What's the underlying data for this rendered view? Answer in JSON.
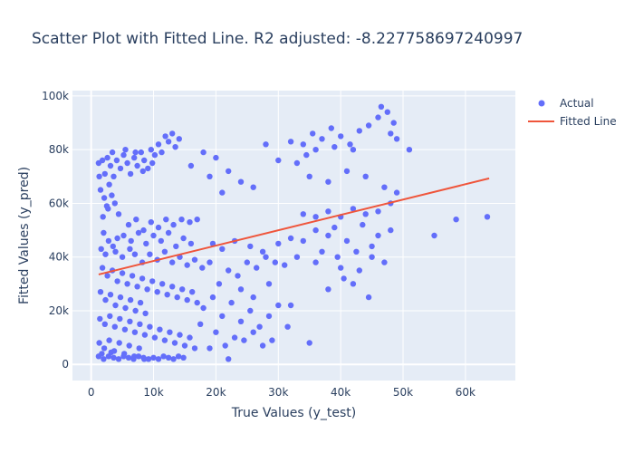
{
  "chart_data": {
    "type": "scatter",
    "title": "Scatter Plot with Fitted Line. R2 adjusted: -8.227758697240997",
    "xlabel": "True Values (y_test)",
    "ylabel": "Fitted Values (y_pred)",
    "xlim": [
      -3000,
      68000
    ],
    "ylim": [
      -6000,
      102000
    ],
    "x_ticks": [
      0,
      10000,
      20000,
      30000,
      40000,
      50000,
      60000
    ],
    "x_tick_labels": [
      "0",
      "10k",
      "20k",
      "30k",
      "40k",
      "50k",
      "60k"
    ],
    "y_ticks": [
      0,
      20000,
      40000,
      60000,
      80000,
      100000
    ],
    "y_tick_labels": [
      "0",
      "20k",
      "40k",
      "60k",
      "80k",
      "100k"
    ],
    "grid": true,
    "legend_position": "top-right",
    "series": [
      {
        "name": "Actual",
        "color": "#636efa",
        "mode": "markers",
        "points": [
          [
            1200,
            75000
          ],
          [
            1800,
            76000
          ],
          [
            2200,
            71000
          ],
          [
            2600,
            77000
          ],
          [
            3100,
            74000
          ],
          [
            3600,
            70000
          ],
          [
            4100,
            76000
          ],
          [
            4700,
            73000
          ],
          [
            5200,
            78000
          ],
          [
            5800,
            75000
          ],
          [
            6300,
            71000
          ],
          [
            6900,
            77000
          ],
          [
            7400,
            74000
          ],
          [
            8000,
            79000
          ],
          [
            8500,
            76000
          ],
          [
            9100,
            73000
          ],
          [
            9600,
            80000
          ],
          [
            10200,
            78000
          ],
          [
            10800,
            82000
          ],
          [
            11300,
            79000
          ],
          [
            11900,
            85000
          ],
          [
            12400,
            83000
          ],
          [
            13000,
            86000
          ],
          [
            13500,
            81000
          ],
          [
            14100,
            84000
          ],
          [
            9800,
            75000
          ],
          [
            8300,
            72000
          ],
          [
            7100,
            79000
          ],
          [
            5500,
            80000
          ],
          [
            3400,
            79000
          ],
          [
            1500,
            65000
          ],
          [
            2100,
            62000
          ],
          [
            2700,
            58000
          ],
          [
            3300,
            63000
          ],
          [
            1900,
            55000
          ],
          [
            2500,
            59000
          ],
          [
            3800,
            60000
          ],
          [
            4400,
            56000
          ],
          [
            1300,
            70000
          ],
          [
            2900,
            67000
          ],
          [
            6000,
            52000
          ],
          [
            7200,
            54000
          ],
          [
            8400,
            50000
          ],
          [
            9600,
            53000
          ],
          [
            10800,
            51000
          ],
          [
            12000,
            54000
          ],
          [
            13200,
            52000
          ],
          [
            14500,
            54000
          ],
          [
            15800,
            53000
          ],
          [
            17000,
            54000
          ],
          [
            5200,
            48000
          ],
          [
            6400,
            46000
          ],
          [
            7600,
            49000
          ],
          [
            8800,
            45000
          ],
          [
            10000,
            48000
          ],
          [
            11200,
            46000
          ],
          [
            12400,
            49000
          ],
          [
            13600,
            44000
          ],
          [
            14800,
            47000
          ],
          [
            16000,
            45000
          ],
          [
            2000,
            49000
          ],
          [
            2800,
            46000
          ],
          [
            3500,
            44000
          ],
          [
            4200,
            47000
          ],
          [
            1600,
            43000
          ],
          [
            2300,
            41000
          ],
          [
            3900,
            42000
          ],
          [
            5000,
            40000
          ],
          [
            6200,
            43000
          ],
          [
            7000,
            41000
          ],
          [
            8200,
            38000
          ],
          [
            9400,
            41000
          ],
          [
            10600,
            39000
          ],
          [
            11800,
            42000
          ],
          [
            13000,
            38000
          ],
          [
            14200,
            40000
          ],
          [
            15400,
            37000
          ],
          [
            16600,
            39000
          ],
          [
            17800,
            36000
          ],
          [
            19000,
            38000
          ],
          [
            1800,
            36000
          ],
          [
            2600,
            33000
          ],
          [
            3400,
            35000
          ],
          [
            4200,
            31000
          ],
          [
            5000,
            34000
          ],
          [
            5800,
            30000
          ],
          [
            6600,
            33000
          ],
          [
            7400,
            29000
          ],
          [
            8200,
            32000
          ],
          [
            9000,
            28000
          ],
          [
            9800,
            31000
          ],
          [
            10600,
            27000
          ],
          [
            11400,
            30000
          ],
          [
            12200,
            26000
          ],
          [
            13000,
            29000
          ],
          [
            13800,
            25000
          ],
          [
            14600,
            28000
          ],
          [
            15400,
            24000
          ],
          [
            16200,
            27000
          ],
          [
            17000,
            23000
          ],
          [
            1500,
            27000
          ],
          [
            2300,
            24000
          ],
          [
            3100,
            26000
          ],
          [
            3900,
            22000
          ],
          [
            4700,
            25000
          ],
          [
            5500,
            21000
          ],
          [
            6300,
            24000
          ],
          [
            7100,
            20000
          ],
          [
            7900,
            23000
          ],
          [
            8700,
            19000
          ],
          [
            1400,
            17000
          ],
          [
            2200,
            15000
          ],
          [
            3000,
            18000
          ],
          [
            3800,
            14000
          ],
          [
            4600,
            17000
          ],
          [
            5400,
            13000
          ],
          [
            6200,
            16000
          ],
          [
            7000,
            12000
          ],
          [
            7800,
            15000
          ],
          [
            8600,
            11000
          ],
          [
            9400,
            14000
          ],
          [
            10200,
            10000
          ],
          [
            11000,
            13000
          ],
          [
            11800,
            9000
          ],
          [
            12600,
            12000
          ],
          [
            13400,
            8000
          ],
          [
            14200,
            11000
          ],
          [
            15000,
            7000
          ],
          [
            15800,
            10000
          ],
          [
            16600,
            6000
          ],
          [
            1300,
            8000
          ],
          [
            2100,
            6000
          ],
          [
            2900,
            9000
          ],
          [
            3700,
            5000
          ],
          [
            4500,
            8000
          ],
          [
            5300,
            4000
          ],
          [
            6100,
            7000
          ],
          [
            6900,
            3000
          ],
          [
            7700,
            6000
          ],
          [
            8500,
            2000
          ],
          [
            1200,
            3000
          ],
          [
            2000,
            2000
          ],
          [
            2800,
            3000
          ],
          [
            3600,
            2500
          ],
          [
            4400,
            2000
          ],
          [
            5200,
            3000
          ],
          [
            6000,
            2500
          ],
          [
            6800,
            2000
          ],
          [
            7600,
            3000
          ],
          [
            8400,
            2500
          ],
          [
            9200,
            2000
          ],
          [
            10000,
            2500
          ],
          [
            10800,
            2000
          ],
          [
            11600,
            3000
          ],
          [
            12400,
            2500
          ],
          [
            13200,
            2000
          ],
          [
            14000,
            3000
          ],
          [
            14800,
            2500
          ],
          [
            1700,
            4000
          ],
          [
            3200,
            4500
          ],
          [
            18000,
            21000
          ],
          [
            19500,
            25000
          ],
          [
            21000,
            18000
          ],
          [
            22500,
            23000
          ],
          [
            24000,
            16000
          ],
          [
            25500,
            20000
          ],
          [
            27000,
            14000
          ],
          [
            28500,
            18000
          ],
          [
            30000,
            22000
          ],
          [
            23000,
            10000
          ],
          [
            20000,
            12000
          ],
          [
            21500,
            7000
          ],
          [
            24500,
            9000
          ],
          [
            26000,
            12000
          ],
          [
            27500,
            7000
          ],
          [
            29000,
            9000
          ],
          [
            22000,
            2000
          ],
          [
            19000,
            6000
          ],
          [
            17500,
            15000
          ],
          [
            20500,
            30000
          ],
          [
            22000,
            35000
          ],
          [
            23500,
            33000
          ],
          [
            25000,
            38000
          ],
          [
            26500,
            36000
          ],
          [
            28000,
            40000
          ],
          [
            29500,
            38000
          ],
          [
            31000,
            37000
          ],
          [
            24000,
            28000
          ],
          [
            26000,
            25000
          ],
          [
            28500,
            30000
          ],
          [
            19500,
            45000
          ],
          [
            21000,
            43000
          ],
          [
            23000,
            46000
          ],
          [
            25500,
            44000
          ],
          [
            27500,
            42000
          ],
          [
            30000,
            45000
          ],
          [
            32000,
            47000
          ],
          [
            34000,
            46000
          ],
          [
            36000,
            50000
          ],
          [
            38000,
            48000
          ],
          [
            34000,
            56000
          ],
          [
            36000,
            55000
          ],
          [
            38000,
            57000
          ],
          [
            40000,
            55000
          ],
          [
            42000,
            58000
          ],
          [
            44000,
            56000
          ],
          [
            46000,
            57000
          ],
          [
            48000,
            60000
          ],
          [
            39000,
            51000
          ],
          [
            41000,
            46000
          ],
          [
            37000,
            42000
          ],
          [
            39500,
            40000
          ],
          [
            42500,
            42000
          ],
          [
            45000,
            44000
          ],
          [
            47000,
            38000
          ],
          [
            43000,
            35000
          ],
          [
            40500,
            32000
          ],
          [
            36000,
            38000
          ],
          [
            33000,
            40000
          ],
          [
            44500,
            25000
          ],
          [
            32000,
            83000
          ],
          [
            34000,
            82000
          ],
          [
            35500,
            86000
          ],
          [
            37000,
            84000
          ],
          [
            38500,
            88000
          ],
          [
            40000,
            85000
          ],
          [
            41500,
            82000
          ],
          [
            43000,
            87000
          ],
          [
            44500,
            89000
          ],
          [
            46000,
            92000
          ],
          [
            47500,
            94000
          ],
          [
            48500,
            90000
          ],
          [
            36000,
            80000
          ],
          [
            34500,
            78000
          ],
          [
            39000,
            81000
          ],
          [
            42000,
            80000
          ],
          [
            46500,
            96000
          ],
          [
            48000,
            86000
          ],
          [
            49000,
            84000
          ],
          [
            51000,
            80000
          ],
          [
            33000,
            75000
          ],
          [
            35000,
            70000
          ],
          [
            38000,
            68000
          ],
          [
            41000,
            72000
          ],
          [
            44000,
            70000
          ],
          [
            47000,
            66000
          ],
          [
            49000,
            64000
          ],
          [
            55000,
            48000
          ],
          [
            58500,
            54000
          ],
          [
            63500,
            55000
          ],
          [
            18000,
            79000
          ],
          [
            20000,
            77000
          ],
          [
            22000,
            72000
          ],
          [
            24000,
            68000
          ],
          [
            26000,
            66000
          ],
          [
            28000,
            82000
          ],
          [
            30000,
            76000
          ],
          [
            16000,
            74000
          ],
          [
            19000,
            70000
          ],
          [
            21000,
            64000
          ],
          [
            35000,
            8000
          ],
          [
            32000,
            22000
          ],
          [
            38000,
            28000
          ],
          [
            40000,
            36000
          ],
          [
            42000,
            30000
          ],
          [
            45000,
            40000
          ],
          [
            48000,
            50000
          ],
          [
            46000,
            48000
          ],
          [
            43500,
            52000
          ],
          [
            31500,
            14000
          ]
        ]
      },
      {
        "name": "Fitted Line",
        "color": "#ef553b",
        "mode": "lines",
        "points": [
          [
            1200,
            33500
          ],
          [
            63800,
            69300
          ]
        ]
      }
    ]
  }
}
